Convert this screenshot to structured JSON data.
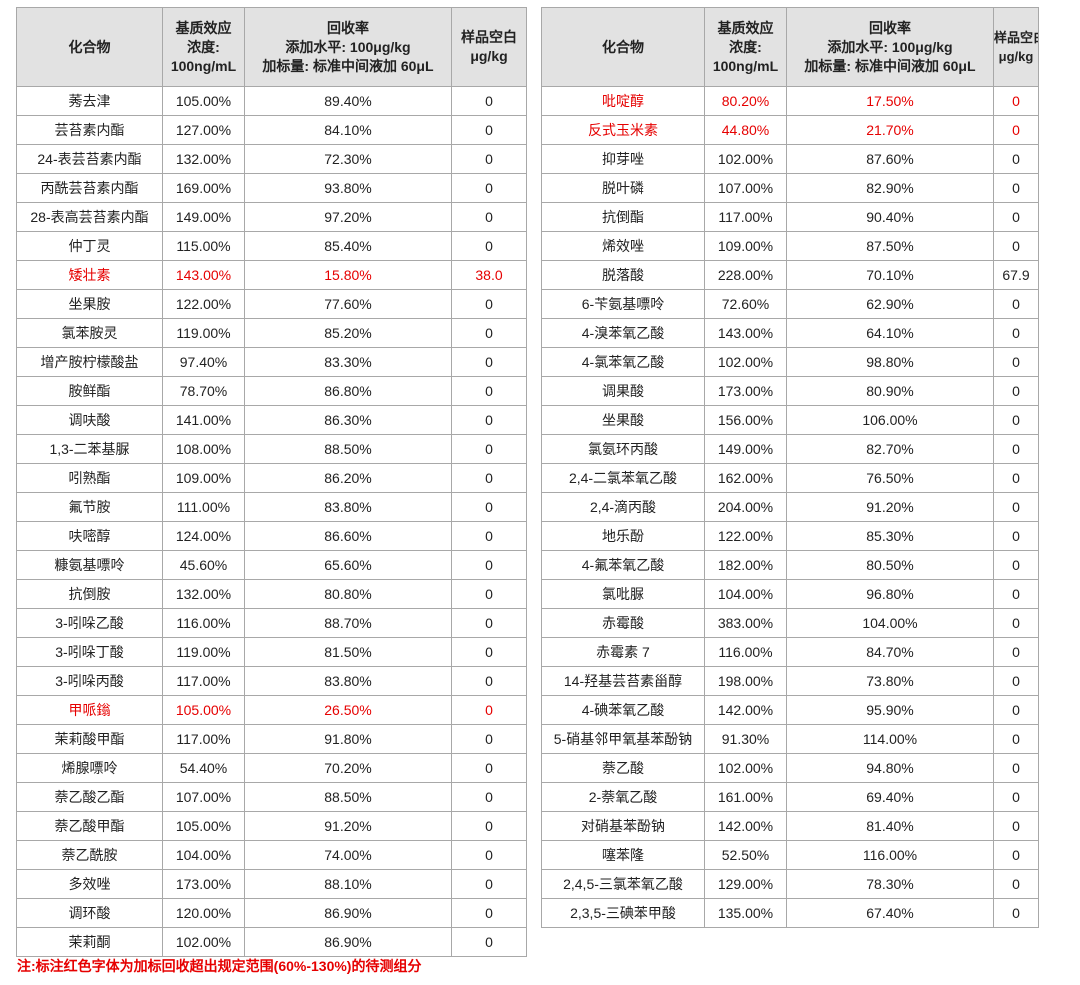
{
  "left": {
    "header": {
      "compound": "化合物",
      "matrix": [
        "基质效应",
        "浓度:",
        "100ng/mL"
      ],
      "recovery": [
        "回收率",
        "添加水平: 100μg/kg",
        "加标量: 标准中间液加 60μL"
      ],
      "blank": [
        "样品空白",
        "μg/kg"
      ]
    },
    "rows": [
      {
        "name": "莠去津",
        "matrix": "105.00%",
        "recovery": "89.40%",
        "blank": "0",
        "highlight": false
      },
      {
        "name": "芸苔素内酯",
        "matrix": "127.00%",
        "recovery": "84.10%",
        "blank": "0",
        "highlight": false
      },
      {
        "name": "24-表芸苔素内酯",
        "matrix": "132.00%",
        "recovery": "72.30%",
        "blank": "0",
        "highlight": false
      },
      {
        "name": "丙酰芸苔素内酯",
        "matrix": "169.00%",
        "recovery": "93.80%",
        "blank": "0",
        "highlight": false
      },
      {
        "name": "28-表高芸苔素内酯",
        "matrix": "149.00%",
        "recovery": "97.20%",
        "blank": "0",
        "highlight": false
      },
      {
        "name": "仲丁灵",
        "matrix": "115.00%",
        "recovery": "85.40%",
        "blank": "0",
        "highlight": false
      },
      {
        "name": "矮壮素",
        "matrix": "143.00%",
        "recovery": "15.80%",
        "blank": "38.0",
        "highlight": true
      },
      {
        "name": "坐果胺",
        "matrix": "122.00%",
        "recovery": "77.60%",
        "blank": "0",
        "highlight": false
      },
      {
        "name": "氯苯胺灵",
        "matrix": "119.00%",
        "recovery": "85.20%",
        "blank": "0",
        "highlight": false
      },
      {
        "name": "增产胺柠檬酸盐",
        "matrix": "97.40%",
        "recovery": "83.30%",
        "blank": "0",
        "highlight": false
      },
      {
        "name": "胺鲜酯",
        "matrix": "78.70%",
        "recovery": "86.80%",
        "blank": "0",
        "highlight": false
      },
      {
        "name": "调呋酸",
        "matrix": "141.00%",
        "recovery": "86.30%",
        "blank": "0",
        "highlight": false
      },
      {
        "name": "1,3-二苯基脲",
        "matrix": "108.00%",
        "recovery": "88.50%",
        "blank": "0",
        "highlight": false
      },
      {
        "name": "吲熟酯",
        "matrix": "109.00%",
        "recovery": "86.20%",
        "blank": "0",
        "highlight": false
      },
      {
        "name": "氟节胺",
        "matrix": "111.00%",
        "recovery": "83.80%",
        "blank": "0",
        "highlight": false
      },
      {
        "name": "呋嘧醇",
        "matrix": "124.00%",
        "recovery": "86.60%",
        "blank": "0",
        "highlight": false
      },
      {
        "name": "糠氨基嘌呤",
        "matrix": "45.60%",
        "recovery": "65.60%",
        "blank": "0",
        "highlight": false
      },
      {
        "name": "抗倒胺",
        "matrix": "132.00%",
        "recovery": "80.80%",
        "blank": "0",
        "highlight": false
      },
      {
        "name": "3-吲哚乙酸",
        "matrix": "116.00%",
        "recovery": "88.70%",
        "blank": "0",
        "highlight": false
      },
      {
        "name": "3-吲哚丁酸",
        "matrix": "119.00%",
        "recovery": "81.50%",
        "blank": "0",
        "highlight": false
      },
      {
        "name": "3-吲哚丙酸",
        "matrix": "117.00%",
        "recovery": "83.80%",
        "blank": "0",
        "highlight": false
      },
      {
        "name": "甲哌鎓",
        "matrix": "105.00%",
        "recovery": "26.50%",
        "blank": "0",
        "highlight": true
      },
      {
        "name": "茉莉酸甲酯",
        "matrix": "117.00%",
        "recovery": "91.80%",
        "blank": "0",
        "highlight": false
      },
      {
        "name": "烯腺嘌呤",
        "matrix": "54.40%",
        "recovery": "70.20%",
        "blank": "0",
        "highlight": false
      },
      {
        "name": "萘乙酸乙酯",
        "matrix": "107.00%",
        "recovery": "88.50%",
        "blank": "0",
        "highlight": false
      },
      {
        "name": "萘乙酸甲酯",
        "matrix": "105.00%",
        "recovery": "91.20%",
        "blank": "0",
        "highlight": false
      },
      {
        "name": "萘乙酰胺",
        "matrix": "104.00%",
        "recovery": "74.00%",
        "blank": "0",
        "highlight": false
      },
      {
        "name": "多效唑",
        "matrix": "173.00%",
        "recovery": "88.10%",
        "blank": "0",
        "highlight": false
      },
      {
        "name": "调环酸",
        "matrix": "120.00%",
        "recovery": "86.90%",
        "blank": "0",
        "highlight": false
      },
      {
        "name": "茉莉酮",
        "matrix": "102.00%",
        "recovery": "86.90%",
        "blank": "0",
        "highlight": false
      }
    ]
  },
  "right": {
    "header": {
      "compound": "化合物",
      "matrix": [
        "基质效应",
        "浓度:",
        "100ng/mL"
      ],
      "recovery": [
        "回收率",
        "添加水平: 100μg/kg",
        "加标量: 标准中间液加 60μL"
      ],
      "blank": [
        "样品空白",
        "μg/kg"
      ]
    },
    "rows": [
      {
        "name": "吡啶醇",
        "matrix": "80.20%",
        "recovery": "17.50%",
        "blank": "0",
        "highlight": true
      },
      {
        "name": "反式玉米素",
        "matrix": "44.80%",
        "recovery": "21.70%",
        "blank": "0",
        "highlight": true
      },
      {
        "name": "抑芽唑",
        "matrix": "102.00%",
        "recovery": "87.60%",
        "blank": "0",
        "highlight": false
      },
      {
        "name": "脱叶磷",
        "matrix": "107.00%",
        "recovery": "82.90%",
        "blank": "0",
        "highlight": false
      },
      {
        "name": "抗倒酯",
        "matrix": "117.00%",
        "recovery": "90.40%",
        "blank": "0",
        "highlight": false
      },
      {
        "name": "烯效唑",
        "matrix": "109.00%",
        "recovery": "87.50%",
        "blank": "0",
        "highlight": false
      },
      {
        "name": "脱落酸",
        "matrix": "228.00%",
        "recovery": "70.10%",
        "blank": "67.9",
        "highlight": false
      },
      {
        "name": "6-苄氨基嘌呤",
        "matrix": "72.60%",
        "recovery": "62.90%",
        "blank": "0",
        "highlight": false
      },
      {
        "name": "4-溴苯氧乙酸",
        "matrix": "143.00%",
        "recovery": "64.10%",
        "blank": "0",
        "highlight": false
      },
      {
        "name": "4-氯苯氧乙酸",
        "matrix": "102.00%",
        "recovery": "98.80%",
        "blank": "0",
        "highlight": false
      },
      {
        "name": "调果酸",
        "matrix": "173.00%",
        "recovery": "80.90%",
        "blank": "0",
        "highlight": false
      },
      {
        "name": "坐果酸",
        "matrix": "156.00%",
        "recovery": "106.00%",
        "blank": "0",
        "highlight": false
      },
      {
        "name": "氯氨环丙酸",
        "matrix": "149.00%",
        "recovery": "82.70%",
        "blank": "0",
        "highlight": false
      },
      {
        "name": "2,4-二氯苯氧乙酸",
        "matrix": "162.00%",
        "recovery": "76.50%",
        "blank": "0",
        "highlight": false
      },
      {
        "name": "2,4-滴丙酸",
        "matrix": "204.00%",
        "recovery": "91.20%",
        "blank": "0",
        "highlight": false
      },
      {
        "name": "地乐酚",
        "matrix": "122.00%",
        "recovery": "85.30%",
        "blank": "0",
        "highlight": false
      },
      {
        "name": "4-氟苯氧乙酸",
        "matrix": "182.00%",
        "recovery": "80.50%",
        "blank": "0",
        "highlight": false
      },
      {
        "name": "氯吡脲",
        "matrix": "104.00%",
        "recovery": "96.80%",
        "blank": "0",
        "highlight": false
      },
      {
        "name": "赤霉酸",
        "matrix": "383.00%",
        "recovery": "104.00%",
        "blank": "0",
        "highlight": false
      },
      {
        "name": "赤霉素 7",
        "matrix": "116.00%",
        "recovery": "84.70%",
        "blank": "0",
        "highlight": false
      },
      {
        "name": "14-羟基芸苔素甾醇",
        "matrix": "198.00%",
        "recovery": "73.80%",
        "blank": "0",
        "highlight": false
      },
      {
        "name": "4-碘苯氧乙酸",
        "matrix": "142.00%",
        "recovery": "95.90%",
        "blank": "0",
        "highlight": false
      },
      {
        "name": "5-硝基邻甲氧基苯酚钠",
        "matrix": "91.30%",
        "recovery": "114.00%",
        "blank": "0",
        "highlight": false
      },
      {
        "name": "萘乙酸",
        "matrix": "102.00%",
        "recovery": "94.80%",
        "blank": "0",
        "highlight": false
      },
      {
        "name": "2-萘氧乙酸",
        "matrix": "161.00%",
        "recovery": "69.40%",
        "blank": "0",
        "highlight": false
      },
      {
        "name": "对硝基苯酚钠",
        "matrix": "142.00%",
        "recovery": "81.40%",
        "blank": "0",
        "highlight": false
      },
      {
        "name": "噻苯隆",
        "matrix": "52.50%",
        "recovery": "116.00%",
        "blank": "0",
        "highlight": false
      },
      {
        "name": "2,4,5-三氯苯氧乙酸",
        "matrix": "129.00%",
        "recovery": "78.30%",
        "blank": "0",
        "highlight": false
      },
      {
        "name": "2,3,5-三碘苯甲酸",
        "matrix": "135.00%",
        "recovery": "67.40%",
        "blank": "0",
        "highlight": false
      }
    ]
  },
  "note": "注:标注红色字体为加标回收超出规定范围(60%-130%)的待测组分",
  "colors": {
    "highlight": "#e60000",
    "header_bg": "#e2e2e2",
    "border": "#a8a8a8"
  }
}
